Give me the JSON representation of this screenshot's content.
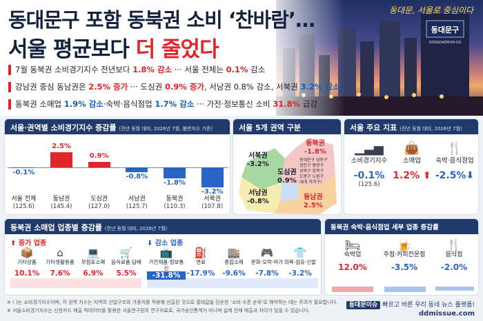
{
  "header": {
    "title_line1": "동대문구 포함 동북권 소비 ‘찬바람’…",
    "title_line2_a": "서울 평균보다 ",
    "title_line2_b": "더 줄었다",
    "slogan": "동대문, 서울로 중심이다",
    "photo_sign": "동대문구",
    "photo_sign2": "DONGDAEMUN-GU"
  },
  "bullets": [
    {
      "a": "7월 동북권 소비경기지수 전년보다 ",
      "b": "1.8% 감소",
      "c": " ··· 서울 전체는 ",
      "d": "0.1%",
      "e": " 감소"
    },
    {
      "a": "강남권 중심 동남권은 ",
      "b": "2.5% 증가",
      "c": " ··· 도심권 ",
      "d": "0.9% 증가",
      "e": ", 서남권 0.8% 감소, 서북권 ",
      "f": "3.2% 감소"
    },
    {
      "a": "동북권 소매업 ",
      "b": "1.9% 감소",
      "c": "·숙박·음식점업 ",
      "d": "1.7% 감소",
      "e": " ··· 가전·정보통신 소비 ",
      "f": "31.8%",
      "g": " 급감"
    }
  ],
  "panel1": {
    "title": "서울·권역별 소비경기지수 증감률",
    "note": "(전년 동월 대비, 2026년 7월, 불변지수 기준)"
  },
  "chart_data": {
    "type": "bar",
    "categories": [
      "서울 전체",
      "동남권",
      "도심권",
      "서남권",
      "동북권",
      "서북권"
    ],
    "values": [
      -0.1,
      2.5,
      0.9,
      -0.8,
      -1.8,
      -3.2
    ],
    "value_labels": [
      "-0.1%",
      "2.5%",
      "0.9%",
      "-0.8%",
      "-1.8%",
      "-3.2%"
    ],
    "index_values": [
      "(125.6)",
      "(145.4)",
      "(127.0)",
      "(125.7)",
      "(110.3)",
      "(107.8)"
    ],
    "colors": {
      "pos": "#e0262b",
      "neg": "#2a64c5"
    }
  },
  "map": {
    "title": "서울 5개 권역 구분",
    "regions": [
      {
        "name": "동북권",
        "value": "-1.8%"
      },
      {
        "name": "서북권",
        "value": "-3.2%"
      },
      {
        "name": "도심권",
        "value": "0.9%"
      },
      {
        "name": "서남권",
        "value": "-0.8%"
      },
      {
        "name": "동남권",
        "value": "2.5%"
      }
    ],
    "districts": [
      "동대문구",
      "성동구",
      "광진구",
      "중랑구",
      "성북구",
      "강북구",
      "도봉구",
      "노원구"
    ],
    "district_note": "(8개 자치구)"
  },
  "seoul": {
    "title": "서울 주요 지표",
    "note": "(전년 동월 대비, 2026년 7월)",
    "items": [
      {
        "name": "소비경기지수",
        "value": "-0.1%",
        "sub": "(125.6)",
        "icon": "bar-chart-icon"
      },
      {
        "name": "소매업",
        "value": "1.2%",
        "icon": "shopping-bag-icon"
      },
      {
        "name": "숙박·음식점업",
        "value": "-2.5%",
        "icon": "fork-knife-icon"
      }
    ]
  },
  "retail": {
    "title": "동북권 소매업 업종별 증감률",
    "note": "(전년 동월 대비, 2026년 7월)",
    "inc_tag": "증가 업종",
    "dec_tag": "감소 업종",
    "inc": [
      {
        "name": "기타상품",
        "value": "10.1%",
        "icon": "box-icon"
      },
      {
        "name": "기타생활용품",
        "value": "7.6%",
        "icon": "house-icon"
      },
      {
        "name": "무점포소매",
        "value": "6.9%",
        "icon": "laptop-icon"
      },
      {
        "name": "음식료품·담배",
        "value": "5.5%",
        "icon": "cart-icon"
      }
    ],
    "dec": [
      {
        "name": "가전제품·정보통신",
        "value": "-31.8%",
        "icon": "tv-icon"
      },
      {
        "name": "연료",
        "value": "-17.9%",
        "icon": "fuel-icon"
      },
      {
        "name": "종합소매",
        "value": "-9.6%",
        "icon": "store-icon"
      },
      {
        "name": "문화·오락·여가",
        "value": "-7.8%",
        "icon": "gamepad-icon"
      },
      {
        "name": "의복·섬유·신발",
        "value": "-3.2%",
        "icon": "shirt-icon"
      }
    ]
  },
  "food": {
    "title": "동북권 숙박·음식점업 세부 업종 증감률",
    "items": [
      {
        "name": "숙박업",
        "value": "12.0%",
        "icon": "bed-icon"
      },
      {
        "name": "주점·커피전문점",
        "value": "-3.5%",
        "icon": "beer-icon"
      },
      {
        "name": "음식점",
        "value": "-2.0%",
        "icon": "fork-knife-icon"
      }
    ]
  },
  "footer": {
    "n1": "※ (  )는 소비경기지수이며, 각 권역 지수는 지역의 산업구조와 가중치를 적용해 산출된 것으로 절대값을 단순한 ‘소비 수준 순위’로 해석하는 데는 주의가 필요합니다.",
    "n2": "※ 서울소비경기지수는 신한카드 매출 빅데이터를 활용한 서울연구원의 연구자료로, 국가승인통계가 아니며 실제 전체 매출과 차이가 있을 수 있습니다.",
    "brand": "동대문이슈",
    "tagline": " 빠르고 바른 우리 동네 뉴스 플랫폼!",
    "site": "ddmissue.com"
  }
}
